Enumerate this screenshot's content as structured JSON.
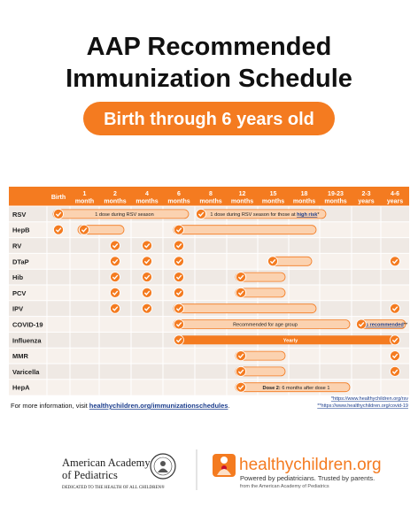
{
  "title": {
    "line1": "AAP Recommended",
    "line2": "Immunization Schedule"
  },
  "subtitle": "Birth through 6 years old",
  "table": {
    "columns": [
      [
        "Birth"
      ],
      [
        "1",
        "month"
      ],
      [
        "2",
        "months"
      ],
      [
        "4",
        "months"
      ],
      [
        "6",
        "months"
      ],
      [
        "8",
        "months"
      ],
      [
        "12",
        "months"
      ],
      [
        "15",
        "months"
      ],
      [
        "18",
        "months"
      ],
      [
        "19-23",
        "months"
      ],
      [
        "2-3",
        "years"
      ],
      [
        "4-6",
        "years"
      ]
    ],
    "rows": [
      {
        "name": "RSV",
        "notes": [
          [
            "1 dose during RSV season"
          ],
          [
            "1 dose during RSV season for those at ",
            "high risk",
            "*"
          ]
        ]
      },
      {
        "name": "HepB"
      },
      {
        "name": "RV"
      },
      {
        "name": "DTaP"
      },
      {
        "name": "Hib"
      },
      {
        "name": "PCV"
      },
      {
        "name": "IPV"
      },
      {
        "name": "COVID-19",
        "notes": [
          [
            "Recommended for age group"
          ],
          [
            "As recommended",
            "**"
          ]
        ]
      },
      {
        "name": "Influenza",
        "notes": [
          [
            "Yearly"
          ]
        ]
      },
      {
        "name": "MMR"
      },
      {
        "name": "Varicella"
      },
      {
        "name": "HepA",
        "notes": [
          [
            "Dose 2:",
            " 6 months after dose 1"
          ]
        ]
      }
    ]
  },
  "more_info": [
    "For more information, visit ",
    "healthychildren.org/immunizationschedules",
    "."
  ],
  "footnotes": [
    "*https://www.healthychildren.org/rsv",
    "**https://www.healthychildren.org/covid-19"
  ],
  "footer": {
    "aap_name": [
      "American Academy",
      "of Pediatrics"
    ],
    "aap_tagline": "DEDICATED TO THE HEALTH OF ALL CHILDREN®",
    "hc_name": "healthychildren.org",
    "hc_tagline": "Powered by pediatricians. Trusted by parents.",
    "hc_from": "from the American Academy of Pediatrics"
  }
}
